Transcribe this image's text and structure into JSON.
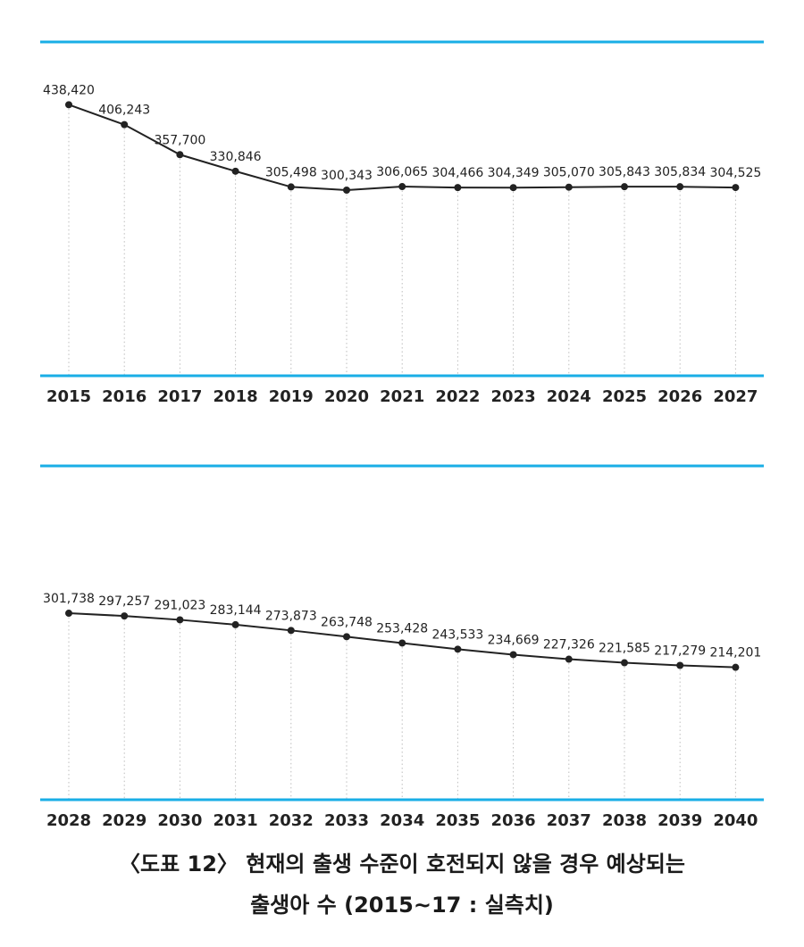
{
  "chart_data": [
    {
      "type": "line",
      "x": [
        "2015",
        "2016",
        "2017",
        "2018",
        "2019",
        "2020",
        "2021",
        "2022",
        "2023",
        "2024",
        "2025",
        "2026",
        "2027"
      ],
      "values": [
        438420,
        406243,
        357700,
        330846,
        305498,
        300343,
        306065,
        304466,
        304349,
        305070,
        305843,
        305834,
        304525
      ],
      "labels": [
        "438,420",
        "406,243",
        "357,700",
        "330,846",
        "305,498",
        "300,343",
        "306,065",
        "304,466",
        "304,349",
        "305,070",
        "305,843",
        "305,834",
        "304,525"
      ],
      "ylim": [
        0,
        540000
      ],
      "grid": "vertical-dotted"
    },
    {
      "type": "line",
      "x": [
        "2028",
        "2029",
        "2030",
        "2031",
        "2032",
        "2033",
        "2034",
        "2035",
        "2036",
        "2037",
        "2038",
        "2039",
        "2040"
      ],
      "values": [
        301738,
        297257,
        291023,
        283144,
        273873,
        263748,
        253428,
        243533,
        234669,
        227326,
        221585,
        217279,
        214201
      ],
      "labels": [
        "301,738",
        "297,257",
        "291,023",
        "283,144",
        "273,873",
        "263,748",
        "253,428",
        "243,533",
        "234,669",
        "227,326",
        "221,585",
        "217,279",
        "214,201"
      ],
      "ylim": [
        0,
        540000
      ],
      "grid": "vertical-dotted"
    }
  ],
  "caption": {
    "line1": "〈도표 12〉 현재의 출생 수준이 호전되지 않을 경우 예상되는",
    "line2": "출생아 수 (2015~17 : 실측치)"
  },
  "colors": {
    "axis": "#19aee6",
    "line": "#222222"
  }
}
